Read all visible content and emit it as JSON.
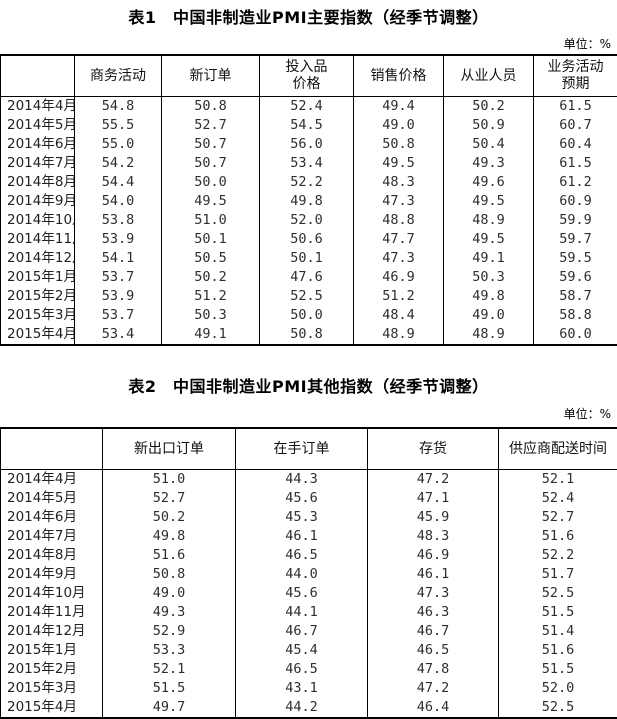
{
  "tables": [
    {
      "title": "表1　中国非制造业PMI主要指数（经季节调整）",
      "unit_label": "单位：%",
      "columns": [
        "",
        "商务活动",
        "新订单",
        "投入品\n价格",
        "销售价格",
        "从业人员",
        "业务活动\n预期"
      ],
      "rows": [
        {
          "label": "2014年4月",
          "values": [
            "54.8",
            "50.8",
            "52.4",
            "49.4",
            "50.2",
            "61.5"
          ]
        },
        {
          "label": "2014年5月",
          "values": [
            "55.5",
            "52.7",
            "54.5",
            "49.0",
            "50.9",
            "60.7"
          ]
        },
        {
          "label": "2014年6月",
          "values": [
            "55.0",
            "50.7",
            "56.0",
            "50.8",
            "50.4",
            "60.4"
          ]
        },
        {
          "label": "2014年7月",
          "values": [
            "54.2",
            "50.7",
            "53.4",
            "49.5",
            "49.3",
            "61.5"
          ]
        },
        {
          "label": "2014年8月",
          "values": [
            "54.4",
            "50.0",
            "52.2",
            "48.3",
            "49.6",
            "61.2"
          ]
        },
        {
          "label": "2014年9月",
          "values": [
            "54.0",
            "49.5",
            "49.8",
            "47.3",
            "49.5",
            "60.9"
          ]
        },
        {
          "label": "2014年10月",
          "values": [
            "53.8",
            "51.0",
            "52.0",
            "48.8",
            "48.9",
            "59.9"
          ]
        },
        {
          "label": "2014年11月",
          "values": [
            "53.9",
            "50.1",
            "50.6",
            "47.7",
            "49.5",
            "59.7"
          ]
        },
        {
          "label": "2014年12月",
          "values": [
            "54.1",
            "50.5",
            "50.1",
            "47.3",
            "49.1",
            "59.5"
          ]
        },
        {
          "label": "2015年1月",
          "values": [
            "53.7",
            "50.2",
            "47.6",
            "46.9",
            "50.3",
            "59.6"
          ]
        },
        {
          "label": "2015年2月",
          "values": [
            "53.9",
            "51.2",
            "52.5",
            "51.2",
            "49.8",
            "58.7"
          ]
        },
        {
          "label": "2015年3月",
          "values": [
            "53.7",
            "50.3",
            "50.0",
            "48.4",
            "49.0",
            "58.8"
          ]
        },
        {
          "label": "2015年4月",
          "values": [
            "53.4",
            "49.1",
            "50.8",
            "48.9",
            "48.9",
            "60.0"
          ]
        }
      ]
    },
    {
      "title": "表2　中国非制造业PMI其他指数（经季节调整）",
      "unit_label": "单位：%",
      "columns": [
        "",
        "新出口订单",
        "在手订单",
        "存货",
        "供应商配送时间"
      ],
      "rows": [
        {
          "label": "2014年4月",
          "values": [
            "51.0",
            "44.3",
            "47.2",
            "52.1"
          ]
        },
        {
          "label": "2014年5月",
          "values": [
            "52.7",
            "45.6",
            "47.1",
            "52.4"
          ]
        },
        {
          "label": "2014年6月",
          "values": [
            "50.2",
            "45.3",
            "45.9",
            "52.7"
          ]
        },
        {
          "label": "2014年7月",
          "values": [
            "49.8",
            "46.1",
            "48.3",
            "51.6"
          ]
        },
        {
          "label": "2014年8月",
          "values": [
            "51.6",
            "46.5",
            "46.9",
            "52.2"
          ]
        },
        {
          "label": "2014年9月",
          "values": [
            "50.8",
            "44.0",
            "46.1",
            "51.7"
          ]
        },
        {
          "label": "2014年10月",
          "values": [
            "49.0",
            "45.6",
            "47.3",
            "52.5"
          ]
        },
        {
          "label": "2014年11月",
          "values": [
            "49.3",
            "44.1",
            "46.3",
            "51.5"
          ]
        },
        {
          "label": "2014年12月",
          "values": [
            "52.9",
            "46.7",
            "46.7",
            "51.4"
          ]
        },
        {
          "label": "2015年1月",
          "values": [
            "53.3",
            "45.4",
            "46.5",
            "51.6"
          ]
        },
        {
          "label": "2015年2月",
          "values": [
            "52.1",
            "46.5",
            "47.8",
            "51.5"
          ]
        },
        {
          "label": "2015年3月",
          "values": [
            "51.5",
            "43.1",
            "47.2",
            "52.0"
          ]
        },
        {
          "label": "2015年4月",
          "values": [
            "49.7",
            "44.2",
            "46.4",
            "52.5"
          ]
        }
      ]
    }
  ]
}
